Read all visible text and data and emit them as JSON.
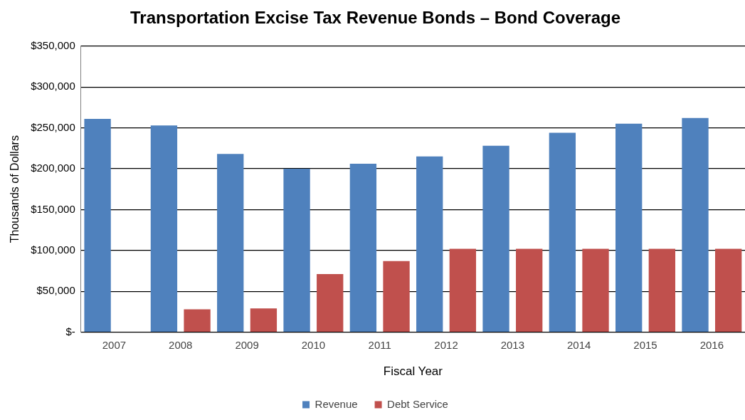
{
  "chart_data": {
    "type": "bar",
    "title": "Transportation Excise Tax Revenue Bonds – Bond Coverage",
    "xlabel": "Fiscal Year",
    "ylabel": "Thousands of Dollars",
    "categories": [
      "2007",
      "2008",
      "2009",
      "2010",
      "2011",
      "2012",
      "2013",
      "2014",
      "2015",
      "2016"
    ],
    "series": [
      {
        "name": "Revenue",
        "color": "#4f81bd",
        "values": [
          261000,
          253000,
          218000,
          200000,
          206000,
          215000,
          228000,
          244000,
          255000,
          262000
        ]
      },
      {
        "name": "Debt Service",
        "color": "#c0504d",
        "values": [
          0,
          28000,
          29000,
          71000,
          87000,
          102000,
          102000,
          102000,
          102000,
          102000
        ]
      }
    ],
    "ylim": [
      0,
      350000
    ],
    "yticks": [
      {
        "value": 0,
        "label": "$-"
      },
      {
        "value": 50000,
        "label": "$50,000"
      },
      {
        "value": 100000,
        "label": "$100,000"
      },
      {
        "value": 150000,
        "label": "$150,000"
      },
      {
        "value": 200000,
        "label": "$200,000"
      },
      {
        "value": 250000,
        "label": "$250,000"
      },
      {
        "value": 300000,
        "label": "$300,000"
      },
      {
        "value": 350000,
        "label": "$350,000"
      }
    ],
    "grid": "y",
    "legend": "bottom"
  }
}
